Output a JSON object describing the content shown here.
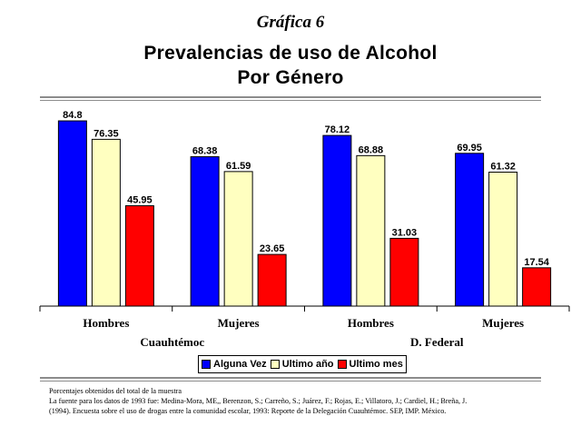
{
  "figure_label": "Gráfica 6",
  "title_line1": "Prevalencias de uso de Alcohol",
  "title_line2": "Por Género",
  "notes": [
    "Porcentajes obtenidos del total de la muestra",
    "La fuente para los datos de 1993 fue: Medina-Mora, ME,, Berenzon, S.; Carreño, S.; Juárez, F.; Rojas, E.; Villatoro, J.; Cardiel, H.; Breña, J.",
    "(1994). Encuesta sobre el uso de drogas entre la comunidad escolar, 1993: Reporte de la Delegación Cuauhtémoc. SEP, IMP. México."
  ],
  "chart_data": {
    "type": "bar",
    "title": "Prevalencias de uso de Alcohol Por Género",
    "categories": [
      "Hombres",
      "Mujeres",
      "Hombres",
      "Mujeres"
    ],
    "groups": [
      {
        "label": "Cuauhtémoc",
        "categories": [
          0,
          1
        ]
      },
      {
        "label": "D. Federal",
        "categories": [
          2,
          3
        ]
      }
    ],
    "series": [
      {
        "name": "Alguna Vez",
        "color": "#0000ff",
        "values": [
          84.8,
          68.38,
          78.12,
          69.95
        ]
      },
      {
        "name": "Ultimo año",
        "color": "#ffffc0",
        "values": [
          76.35,
          61.59,
          68.88,
          61.32
        ]
      },
      {
        "name": "Ultimo mes",
        "color": "#ff0000",
        "values": [
          45.95,
          23.65,
          31.03,
          17.54
        ]
      }
    ],
    "value_labels": [
      [
        "84.8",
        "68.38",
        "78.12",
        "69.95"
      ],
      [
        "76.35",
        "61.59",
        "68.88",
        "61.32"
      ],
      [
        "45.95",
        "23.65",
        "31.03",
        "17.54"
      ]
    ],
    "ylim": [
      0,
      90
    ],
    "grid": false,
    "legend_position": "bottom-center",
    "xlabel": "",
    "ylabel": ""
  }
}
